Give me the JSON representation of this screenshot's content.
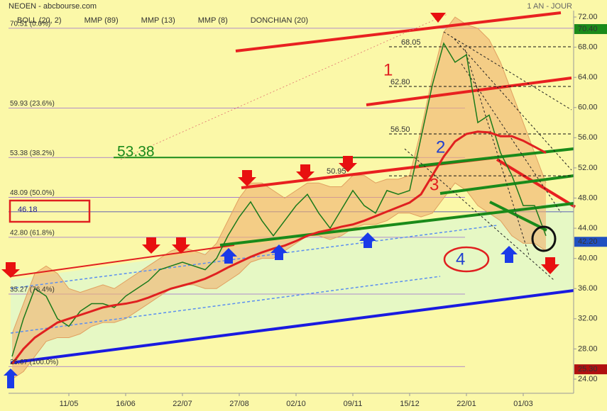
{
  "chart_data": {
    "type": "line",
    "title": "NEOEN - abcbourse.com",
    "subtitle": "1 AN - JOUR",
    "indicators": [
      {
        "name": "BOLL (20, 2)",
        "color": "#f0a040"
      },
      {
        "name": "MMP (89)",
        "color": "#e02020"
      },
      {
        "name": "MMP (13)",
        "color": "#2020e0"
      },
      {
        "name": "MMP (8)",
        "color": "#209020"
      },
      {
        "name": "DONCHIAN (20)",
        "color": "#6060b0"
      }
    ],
    "categories": [
      null,
      null,
      null,
      null,
      null,
      "11/05",
      null,
      null,
      null,
      null,
      "16/06",
      null,
      null,
      null,
      null,
      "22/07",
      null,
      null,
      null,
      null,
      "27/08",
      null,
      null,
      null,
      null,
      "02/10",
      null,
      null,
      null,
      null,
      "09/11",
      null,
      null,
      null,
      null,
      "15/12",
      null,
      null,
      null,
      null,
      "22/01",
      null,
      null,
      null,
      null,
      "01/03",
      null,
      null
    ],
    "series": [
      {
        "name": "NEOEN",
        "color": "#1a7a1a",
        "values": [
          27,
          32,
          36,
          35,
          32,
          31,
          33,
          34,
          34,
          33.5,
          35,
          36,
          37,
          38.5,
          39,
          39.5,
          39,
          38.5,
          40,
          43,
          45.5,
          47.5,
          45,
          43,
          45,
          47,
          48.5,
          46,
          44,
          46.5,
          49,
          47,
          46,
          49,
          48.5,
          49,
          56,
          63,
          68.5,
          66,
          67,
          58,
          59,
          54,
          51,
          47,
          47,
          43
        ]
      },
      {
        "name": "MMP (89)",
        "color": "#e02020",
        "values": [
          26,
          28,
          29.5,
          30.5,
          31.5,
          32,
          32.5,
          33,
          33.5,
          33.8,
          34,
          34.3,
          34.8,
          35.4,
          36,
          36.4,
          36.8,
          37.3,
          38,
          38.8,
          39.5,
          40.2,
          40.8,
          41.3,
          41.7,
          42.3,
          43,
          43.5,
          43.8,
          44.2,
          44.5,
          45,
          45.6,
          46.2,
          46.8,
          47.4,
          48.5,
          51,
          53.5,
          55.5,
          56.5,
          56.8,
          56.7,
          56.2,
          56.2,
          55.6,
          54.8,
          54
        ]
      }
    ],
    "band": {
      "name": "BOLL (20, 2)",
      "color": "#f0b070",
      "upper": [
        30,
        34,
        38,
        39,
        38,
        36,
        35.5,
        36,
        36.5,
        36,
        37,
        38,
        39,
        40,
        41,
        41.5,
        41,
        40.5,
        42,
        45,
        48,
        50,
        50,
        49,
        48,
        49,
        50,
        50,
        49.5,
        49.5,
        51,
        51,
        50,
        50.5,
        50.5,
        51,
        57,
        64,
        70,
        72,
        71,
        70.5,
        69,
        66,
        62,
        58,
        54,
        50
      ],
      "lower": [
        24,
        25,
        27,
        29,
        29.5,
        29.5,
        30,
        31,
        31.5,
        31.5,
        32,
        33,
        34,
        35,
        36,
        36.5,
        36.5,
        36,
        36,
        37,
        38,
        39.5,
        40,
        40,
        41,
        42,
        43,
        43,
        42.5,
        43,
        44,
        44.5,
        44.5,
        45,
        46,
        46,
        45.5,
        46,
        48,
        50,
        49,
        47,
        46,
        45,
        43,
        42,
        42,
        41
      ]
    },
    "ylim": [
      24,
      72
    ],
    "yticks": [
      {
        "value": 24,
        "label": "24.00"
      },
      {
        "value": 28,
        "label": "28.00"
      },
      {
        "value": 32,
        "label": "32.00"
      },
      {
        "value": 36,
        "label": "36.00"
      },
      {
        "value": 40,
        "label": "40.00"
      },
      {
        "value": 44,
        "label": "44.00"
      },
      {
        "value": 48,
        "label": "48.00"
      },
      {
        "value": 52,
        "label": "52.00"
      },
      {
        "value": 56,
        "label": "56.00"
      },
      {
        "value": 60,
        "label": "60.00"
      },
      {
        "value": 64,
        "label": "64.00"
      },
      {
        "value": 68,
        "label": "68.00"
      },
      {
        "value": 72,
        "label": "72.00"
      }
    ],
    "fibonacci": [
      {
        "value": 70.51,
        "label": "70.51 (0.0%)"
      },
      {
        "value": 59.93,
        "label": "59.93 (23.6%)"
      },
      {
        "value": 53.38,
        "label": "53.38 (38.2%)"
      },
      {
        "value": 48.09,
        "label": "48.09 (50.0%)"
      },
      {
        "value": 42.8,
        "label": "42.80 (61.8%)"
      },
      {
        "value": 35.27,
        "label": "35.27 (76.4%)"
      },
      {
        "value": 25.67,
        "label": "25.67 (100.0%)"
      }
    ],
    "levels": [
      {
        "value": 68.05,
        "label": "68.05"
      },
      {
        "value": 62.8,
        "label": "62.80"
      },
      {
        "value": 56.5,
        "label": "56.50"
      },
      {
        "value": 50.95,
        "label": "50.95"
      }
    ],
    "support": {
      "value": 46.18,
      "label": "46.18"
    },
    "key_level": {
      "value": 53.38,
      "label": "53.38"
    },
    "price_tags": [
      {
        "value": 70.4,
        "label": "70.40",
        "color": "#1a8a1a"
      },
      {
        "value": 42.2,
        "label": "42.20",
        "color": "#2050c0"
      },
      {
        "value": 25.3,
        "label": "25.30",
        "color": "#b01010"
      }
    ],
    "annotations": [
      {
        "text": "1",
        "color": "#e02020"
      },
      {
        "text": "2",
        "color": "#2040d0"
      },
      {
        "text": "3",
        "color": "#e02020"
      },
      {
        "text": "4",
        "color": "#2040d0"
      }
    ]
  }
}
